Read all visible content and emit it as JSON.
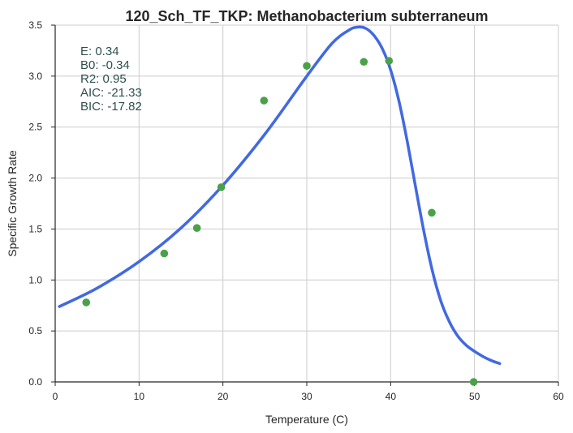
{
  "chart_data": {
    "type": "scatter",
    "title": "120_Sch_TF_TKP: Methanobacterium subterraneum",
    "xlabel": "Temperature (C)",
    "ylabel": "Specific Growth Rate",
    "xlim": [
      0,
      60
    ],
    "ylim": [
      0,
      3.5
    ],
    "xticks": [
      0,
      10,
      20,
      30,
      40,
      50,
      60
    ],
    "yticks": [
      0.0,
      0.5,
      1.0,
      1.5,
      2.0,
      2.5,
      3.0,
      3.5
    ],
    "xtick_labels": [
      "0",
      "10",
      "20",
      "30",
      "40",
      "50",
      "60"
    ],
    "ytick_labels": [
      "0.0",
      "0.5",
      "1.0",
      "1.5",
      "2.0",
      "2.5",
      "3.0",
      "3.5"
    ],
    "grid": true,
    "colors": {
      "fit": "#4169e1",
      "points": "#4aa14a",
      "grid": "#cccccc",
      "stats": "#2f4f4f"
    },
    "series": [
      {
        "kind": "points",
        "x": [
          3.7,
          13.0,
          16.9,
          19.8,
          24.9,
          30.0,
          36.8,
          39.8,
          44.9,
          49.9
        ],
        "y": [
          0.78,
          1.26,
          1.51,
          1.91,
          2.76,
          3.1,
          3.14,
          3.15,
          1.66,
          0.0
        ]
      },
      {
        "kind": "fit",
        "x": [
          0.5,
          5,
          10,
          15,
          20,
          25,
          30,
          33,
          35,
          36,
          37,
          38,
          39,
          40,
          41,
          42,
          43,
          44,
          45,
          46,
          47,
          48,
          49,
          50,
          51,
          52,
          53
        ],
        "y": [
          0.74,
          0.92,
          1.18,
          1.51,
          1.93,
          2.43,
          3.0,
          3.32,
          3.45,
          3.48,
          3.47,
          3.4,
          3.27,
          3.06,
          2.75,
          2.35,
          1.9,
          1.46,
          1.08,
          0.79,
          0.59,
          0.45,
          0.36,
          0.3,
          0.25,
          0.21,
          0.18
        ]
      }
    ],
    "annotations": [
      "E:  0.34",
      "B0:  -0.34",
      "R2:  0.95",
      "AIC: -21.33",
      "BIC: -17.82"
    ]
  }
}
